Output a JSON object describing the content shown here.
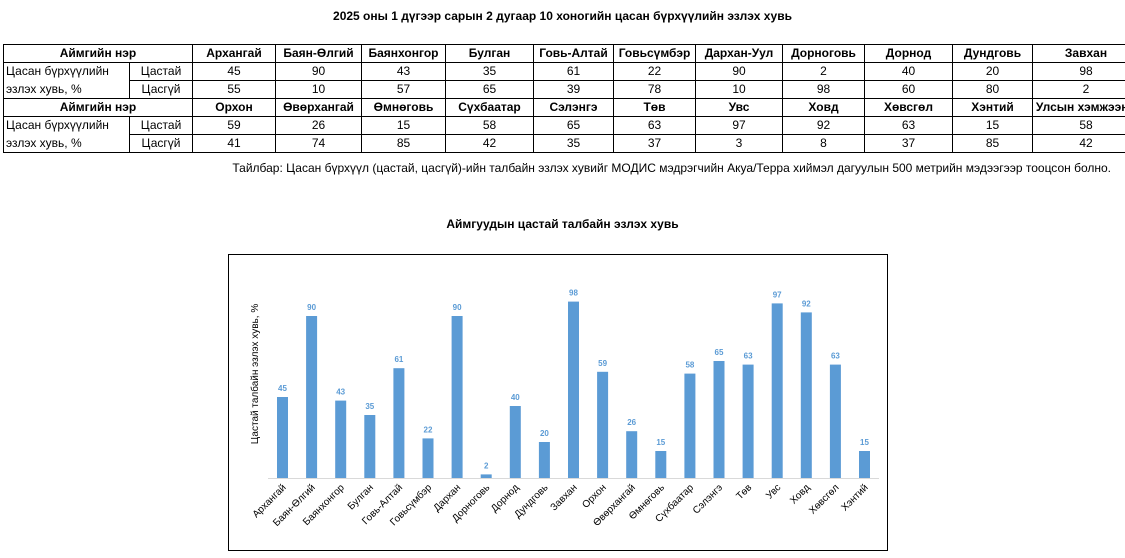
{
  "page_title": "2025 оны 1 дүгээр сарын 2 дугаар 10 хоногийн цасан бүрхүүлийн эзлэх хувь",
  "table": {
    "header_label": "Аймгийн нэр",
    "row_label_line1": "Цасан бүрхүүлийн",
    "row_label_line2": "эзлэх хувь, %",
    "sub_labels": [
      "Цастай",
      "Цасгүй"
    ],
    "block1": {
      "names": [
        "Архангай",
        "Баян-Өлгий",
        "Баянхонгор",
        "Булган",
        "Говь-Алтай",
        "Говьсүмбэр",
        "Дархан-Уул",
        "Дорноговь",
        "Дорнод",
        "Дундговь",
        "Завхан"
      ],
      "snow": [
        "45",
        "90",
        "43",
        "35",
        "61",
        "22",
        "90",
        "2",
        "40",
        "20",
        "98"
      ],
      "nosnow": [
        "55",
        "10",
        "57",
        "65",
        "39",
        "78",
        "10",
        "98",
        "60",
        "80",
        "2"
      ]
    },
    "block2": {
      "names": [
        "Орхон",
        "Өвөрхангай",
        "Өмнөговь",
        "Сүхбаатар",
        "Сэлэнгэ",
        "Төв",
        "Увс",
        "Ховд",
        "Хөвсгөл",
        "Хэнтий",
        "Улсын хэмжээнд"
      ],
      "snow": [
        "59",
        "26",
        "15",
        "58",
        "65",
        "63",
        "97",
        "92",
        "63",
        "15",
        "58"
      ],
      "nosnow": [
        "41",
        "74",
        "85",
        "42",
        "35",
        "37",
        "3",
        "8",
        "37",
        "85",
        "42"
      ]
    }
  },
  "footnote": "Тайлбар: Цасан бүрхүүл (цастай, цасгүй)-ийн талбайн эзлэх хувийг МОДИС мэдрэгчийн Акуа/Терра хиймэл дагуулын 500 метрийн мэдээгээр тооцсон болно.",
  "chart_data": {
    "type": "bar",
    "title": "Аймгуудын цастай талбайн эзлэх хувь",
    "ylabel": "Цастай талбайн эзлэх хувь, %",
    "xlabel": "",
    "categories": [
      "Архангай",
      "Баян-Өлгий",
      "Баянхонгор",
      "Булган",
      "Говь-Алтай",
      "Говьсүмбэр",
      "Дархан",
      "Дорноговь",
      "Дорнод",
      "Дундговь",
      "Завхан",
      "Орхон",
      "Өвөрхангай",
      "Өмнөговь",
      "Сүхбаатар",
      "Сэлэнгэ",
      "Төв",
      "Увс",
      "Ховд",
      "Хөвсгөл",
      "Хэнтий"
    ],
    "values": [
      45,
      90,
      43,
      35,
      61,
      22,
      90,
      2,
      40,
      20,
      98,
      59,
      26,
      15,
      58,
      65,
      63,
      97,
      92,
      63,
      15
    ],
    "ylim": [
      0,
      100
    ],
    "grid": false,
    "legend": "none",
    "bar_color": "#5b9bd5",
    "label_color": "#5b9bd5"
  }
}
